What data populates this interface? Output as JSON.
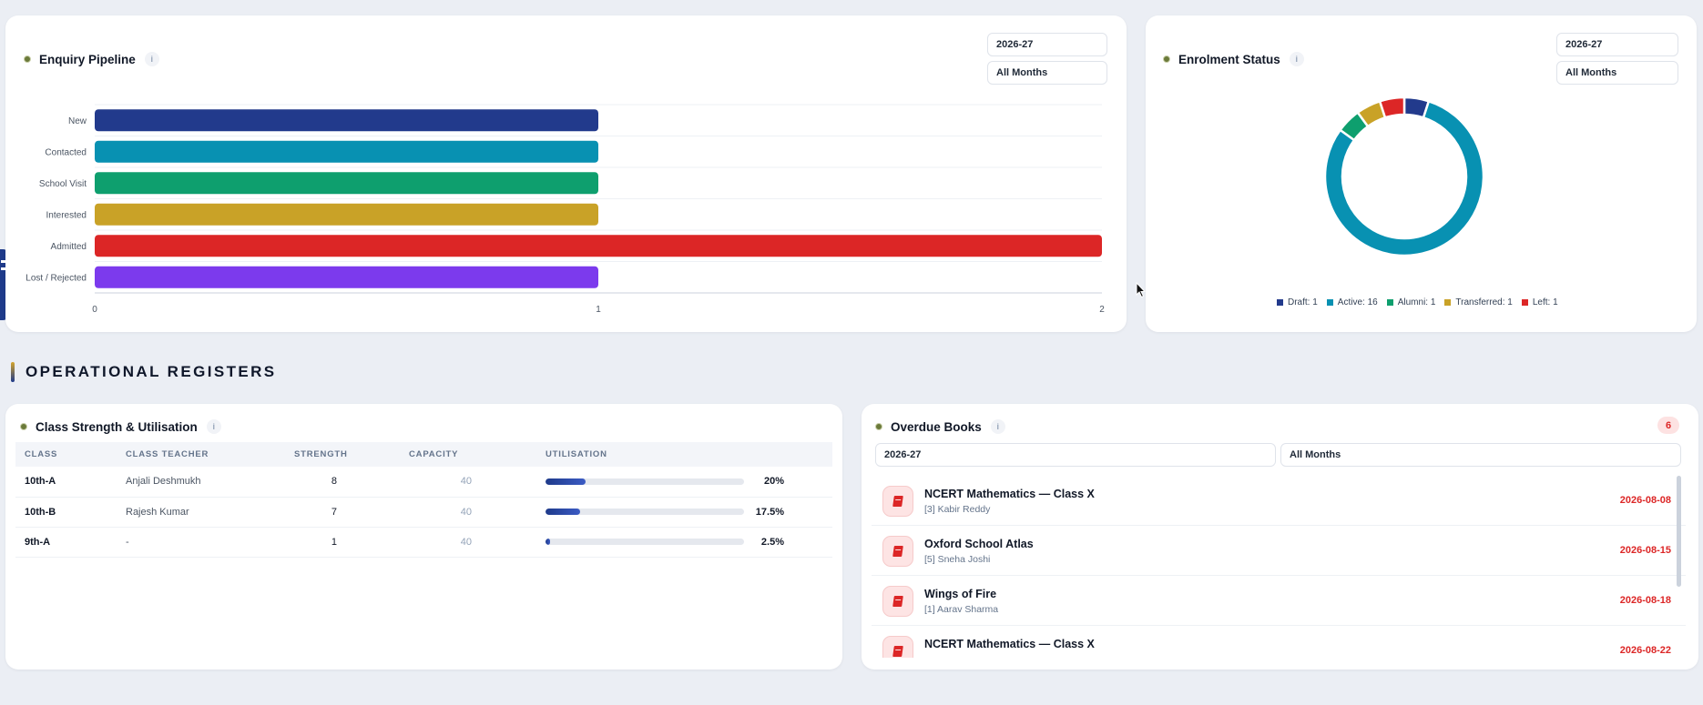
{
  "enquiry": {
    "title": "Enquiry Pipeline",
    "info": "i",
    "year": "2026-27",
    "months": "All Months"
  },
  "enrolment": {
    "title": "Enrolment Status",
    "info": "i",
    "year": "2026-27",
    "months": "All Months",
    "legend": [
      "Draft: 1",
      "Active: 16",
      "Alumni: 1",
      "Transferred: 1",
      "Left: 1"
    ]
  },
  "section": {
    "heading": "OPERATIONAL REGISTERS"
  },
  "class_strength": {
    "title": "Class Strength & Utilisation",
    "info": "i",
    "headers": [
      "CLASS",
      "CLASS TEACHER",
      "STRENGTH",
      "CAPACITY",
      "UTILISATION"
    ],
    "rows": [
      {
        "cls": "10th-A",
        "teacher": "Anjali Deshmukh",
        "strength": "8",
        "capacity": "40",
        "util": "20%",
        "frac": 0.2
      },
      {
        "cls": "10th-B",
        "teacher": "Rajesh Kumar",
        "strength": "7",
        "capacity": "40",
        "util": "17.5%",
        "frac": 0.175
      },
      {
        "cls": "9th-A",
        "teacher": "-",
        "strength": "1",
        "capacity": "40",
        "util": "2.5%",
        "frac": 0.025
      }
    ]
  },
  "overdue": {
    "title": "Overdue Books",
    "info": "i",
    "count": "6",
    "year": "2026-27",
    "months": "All Months",
    "books": [
      {
        "title": "NCERT Mathematics — Class X",
        "student": "[3] Kabir Reddy",
        "date": "2026-08-08"
      },
      {
        "title": "Oxford School Atlas",
        "student": "[5] Sneha Joshi",
        "date": "2026-08-15"
      },
      {
        "title": "Wings of Fire",
        "student": "[1] Aarav Sharma",
        "date": "2026-08-18"
      },
      {
        "title": "NCERT Mathematics — Class X",
        "student": "",
        "date": "2026-08-22"
      }
    ]
  },
  "chart_data": [
    {
      "type": "bar",
      "orientation": "horizontal",
      "title": "Enquiry Pipeline",
      "categories": [
        "New",
        "Contacted",
        "School Visit",
        "Interested",
        "Admitted",
        "Lost / Rejected"
      ],
      "values": [
        1,
        1,
        1,
        1,
        2,
        1
      ],
      "colors": [
        "#223a8c",
        "#0891b2",
        "#0e9f6e",
        "#c9a227",
        "#dc2626",
        "#7c3aed"
      ],
      "xlim": [
        0,
        2
      ],
      "xticks": [
        "0",
        "1",
        "2"
      ],
      "grid": true
    },
    {
      "type": "pie",
      "variant": "donut",
      "title": "Enrolment Status",
      "categories": [
        "Draft",
        "Active",
        "Alumni",
        "Transferred",
        "Left"
      ],
      "values": [
        1,
        16,
        1,
        1,
        1
      ],
      "colors": [
        "#223a8c",
        "#0891b2",
        "#0e9f6e",
        "#c9a227",
        "#dc2626"
      ],
      "legend": "bottom"
    }
  ]
}
